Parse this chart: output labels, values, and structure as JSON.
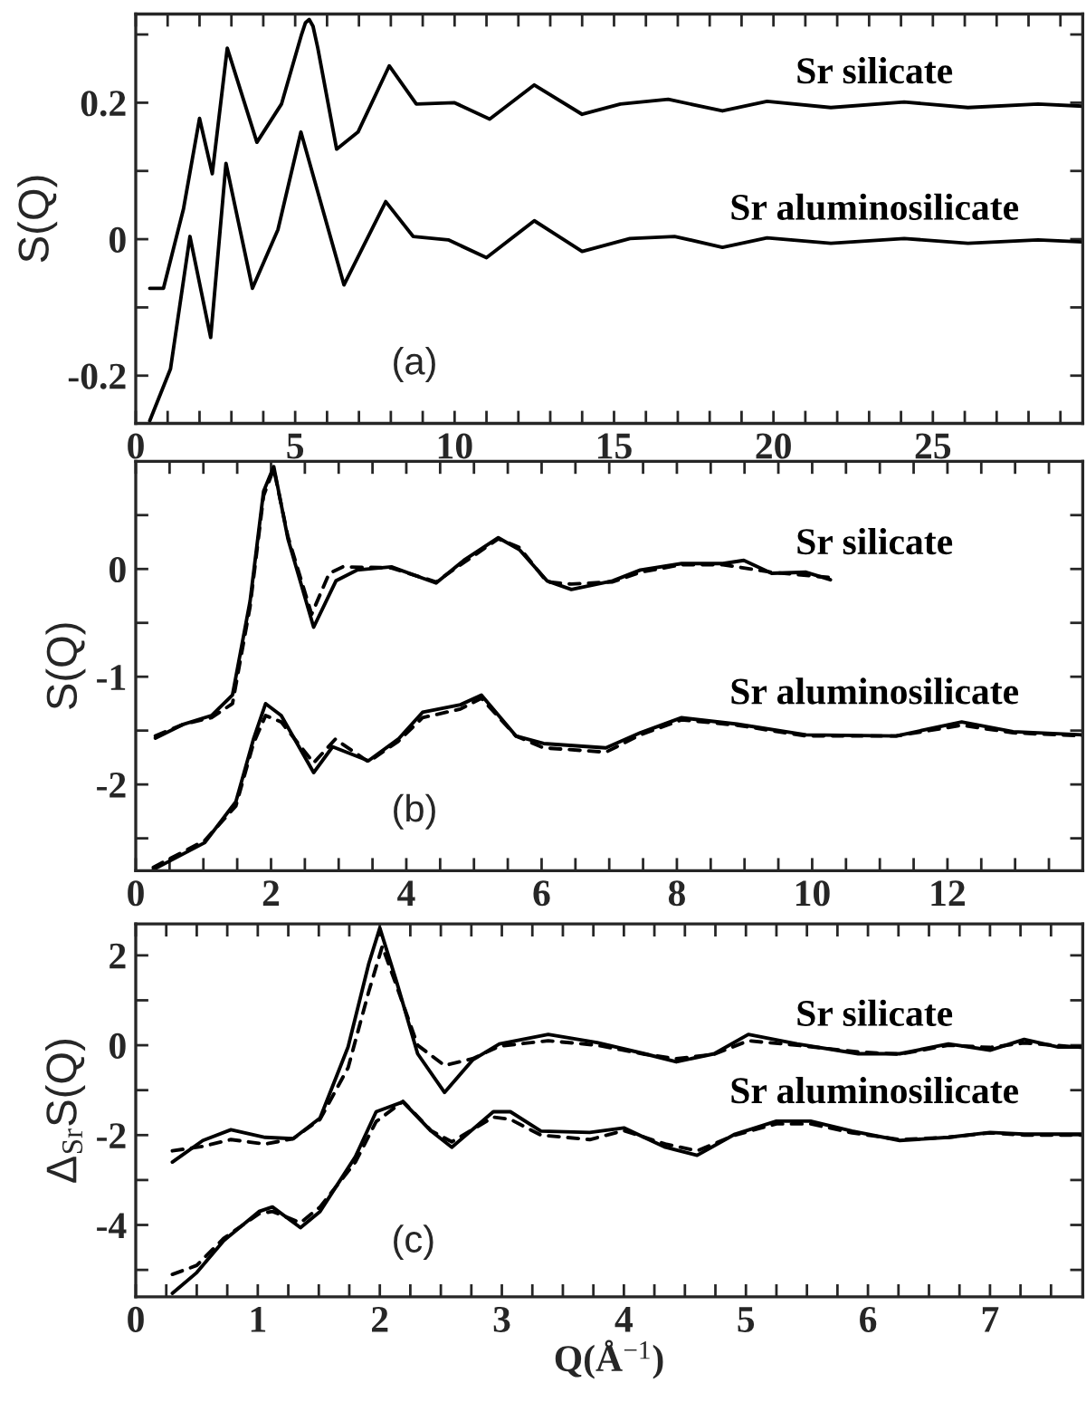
{
  "chart_data": [
    {
      "type": "line",
      "ylabel": "S(Q)",
      "annotations": [
        "(a)"
      ],
      "legend": false,
      "grid": false,
      "marker": "none",
      "xlim": [
        0,
        29.7
      ],
      "ylim": [
        -0.27,
        0.33
      ],
      "xticks": [
        0,
        {
          "value": 1,
          "label": null
        },
        {
          "value": 2,
          "label": null
        },
        {
          "value": 3,
          "label": null
        },
        {
          "value": 4,
          "label": null
        },
        5,
        {
          "value": 6,
          "label": null
        },
        {
          "value": 7,
          "label": null
        },
        {
          "value": 8,
          "label": null
        },
        {
          "value": 9,
          "label": null
        },
        10,
        {
          "value": 11,
          "label": null
        },
        {
          "value": 12,
          "label": null
        },
        {
          "value": 13,
          "label": null
        },
        {
          "value": 14,
          "label": null
        },
        15,
        {
          "value": 16,
          "label": null
        },
        {
          "value": 17,
          "label": null
        },
        {
          "value": 18,
          "label": null
        },
        {
          "value": 19,
          "label": null
        },
        20,
        {
          "value": 21,
          "label": null
        },
        {
          "value": 22,
          "label": null
        },
        {
          "value": 23,
          "label": null
        },
        {
          "value": 24,
          "label": null
        },
        25,
        {
          "value": 26,
          "label": null
        },
        {
          "value": 27,
          "label": null
        },
        {
          "value": 28,
          "label": null
        },
        {
          "value": 29,
          "label": null
        }
      ],
      "yticks": [
        -0.2,
        {
          "value": -0.1,
          "label": null
        },
        0,
        {
          "value": 0.1,
          "label": null
        },
        0.2,
        {
          "value": 0.3,
          "label": null
        }
      ],
      "series": [
        {
          "name": "Sr silicate",
          "color": "#000000",
          "line_style": "solid",
          "x": [
            0.44,
            0.87,
            1.5,
            2.0,
            2.4,
            2.87,
            3.8,
            4.57,
            5.2,
            5.32,
            5.44,
            5.56,
            5.71,
            6.3,
            6.97,
            7.95,
            8.8,
            10.0,
            11.1,
            12.5,
            14.0,
            15.2,
            16.7,
            18.4,
            19.8,
            21.8,
            24.1,
            26.1,
            28.3,
            29.7
          ],
          "values": [
            -0.072,
            -0.072,
            0.045,
            0.177,
            0.096,
            0.28,
            0.142,
            0.198,
            0.3,
            0.317,
            0.322,
            0.312,
            0.28,
            0.132,
            0.157,
            0.254,
            0.198,
            0.2,
            0.176,
            0.226,
            0.183,
            0.198,
            0.205,
            0.188,
            0.202,
            0.193,
            0.201,
            0.193,
            0.198,
            0.195
          ]
        },
        {
          "name": "Sr aluminosilicate",
          "color": "#000000",
          "line_style": "solid",
          "x": [
            0.44,
            1.09,
            1.7,
            2.35,
            2.83,
            3.66,
            4.46,
            5.18,
            6.53,
            7.84,
            8.7,
            9.8,
            11.0,
            12.5,
            14.0,
            15.5,
            16.9,
            18.4,
            19.8,
            21.8,
            24.1,
            26.1,
            28.3,
            29.7
          ],
          "values": [
            -0.266,
            -0.19,
            0.004,
            -0.144,
            0.111,
            -0.072,
            0.014,
            0.157,
            -0.067,
            0.055,
            0.004,
            -0.001,
            -0.027,
            0.027,
            -0.018,
            0.001,
            0.004,
            -0.012,
            0.002,
            -0.006,
            0.001,
            -0.006,
            -0.001,
            -0.004
          ]
        }
      ]
    },
    {
      "type": "line",
      "ylabel": "S(Q)",
      "annotations": [
        "(b)"
      ],
      "legend": false,
      "grid": false,
      "marker": "none",
      "xlim": [
        0,
        14.0
      ],
      "ylim": [
        -2.8,
        1.0
      ],
      "xticks": [
        0,
        {
          "value": 0.5,
          "label": null
        },
        {
          "value": 1,
          "label": null
        },
        {
          "value": 1.5,
          "label": null
        },
        2,
        {
          "value": 2.5,
          "label": null
        },
        {
          "value": 3,
          "label": null
        },
        {
          "value": 3.5,
          "label": null
        },
        4,
        {
          "value": 4.5,
          "label": null
        },
        {
          "value": 5,
          "label": null
        },
        {
          "value": 5.5,
          "label": null
        },
        6,
        {
          "value": 6.5,
          "label": null
        },
        {
          "value": 7,
          "label": null
        },
        {
          "value": 7.5,
          "label": null
        },
        8,
        {
          "value": 8.5,
          "label": null
        },
        {
          "value": 9,
          "label": null
        },
        {
          "value": 9.5,
          "label": null
        },
        10,
        {
          "value": 10.5,
          "label": null
        },
        {
          "value": 11,
          "label": null
        },
        {
          "value": 11.5,
          "label": null
        },
        12,
        {
          "value": 12.5,
          "label": null
        },
        {
          "value": 13,
          "label": null
        },
        {
          "value": 13.5,
          "label": null
        }
      ],
      "yticks": [
        {
          "value": -2.5,
          "label": null
        },
        -2,
        {
          "value": -1.5,
          "label": null
        },
        -1,
        {
          "value": -0.5,
          "label": null
        },
        0,
        {
          "value": 0.5,
          "label": null
        }
      ],
      "series": [
        {
          "name": "Sr silicate",
          "color": "#000000",
          "line_style": "solid",
          "x": [
            0.29,
            0.71,
            1.12,
            1.43,
            1.69,
            1.89,
            2.04,
            2.25,
            2.63,
            2.96,
            3.27,
            3.78,
            4.44,
            4.85,
            5.36,
            5.67,
            6.08,
            6.44,
            7.05,
            7.46,
            8.07,
            8.68,
            8.99,
            9.4,
            9.91,
            10.27
          ],
          "values": [
            -1.57,
            -1.44,
            -1.36,
            -1.17,
            -0.3,
            0.72,
            0.95,
            0.28,
            -0.54,
            -0.11,
            -0.01,
            0.02,
            -0.13,
            0.08,
            0.29,
            0.18,
            -0.11,
            -0.19,
            -0.11,
            -0.01,
            0.05,
            0.05,
            0.08,
            -0.04,
            -0.03,
            -0.1
          ]
        },
        {
          "color": "#000000",
          "line_style": "dashed",
          "x": [
            0.29,
            0.71,
            1.12,
            1.43,
            1.69,
            1.89,
            2.04,
            2.25,
            2.6,
            2.86,
            3.06,
            3.78,
            4.44,
            4.85,
            5.36,
            5.67,
            6.08,
            6.44,
            7.05,
            7.46,
            8.07,
            8.68,
            9.4,
            10.27
          ],
          "values": [
            -1.55,
            -1.44,
            -1.38,
            -1.25,
            -0.35,
            0.68,
            0.93,
            0.3,
            -0.42,
            -0.04,
            0.02,
            0.01,
            -0.12,
            0.06,
            0.28,
            0.2,
            -0.12,
            -0.14,
            -0.12,
            -0.03,
            0.04,
            0.04,
            -0.03,
            -0.08
          ]
        },
        {
          "name": "Sr aluminosilicate",
          "color": "#000000",
          "line_style": "solid",
          "x": [
            0.26,
            1.02,
            1.48,
            1.74,
            1.92,
            2.15,
            2.63,
            2.91,
            3.44,
            3.88,
            4.24,
            4.8,
            5.11,
            5.62,
            6.03,
            6.95,
            7.46,
            8.07,
            8.89,
            9.91,
            11.24,
            12.21,
            12.97,
            14.0
          ],
          "values": [
            -2.79,
            -2.54,
            -2.16,
            -1.58,
            -1.25,
            -1.36,
            -1.89,
            -1.65,
            -1.78,
            -1.58,
            -1.33,
            -1.26,
            -1.17,
            -1.55,
            -1.62,
            -1.66,
            -1.52,
            -1.38,
            -1.44,
            -1.54,
            -1.55,
            -1.42,
            -1.51,
            -1.54
          ]
        },
        {
          "color": "#000000",
          "line_style": "dashed",
          "x": [
            0.26,
            1.02,
            1.48,
            1.74,
            1.92,
            2.15,
            2.63,
            2.95,
            3.44,
            3.88,
            4.24,
            4.8,
            5.11,
            5.62,
            6.03,
            6.95,
            7.46,
            8.07,
            8.89,
            9.91,
            11.24,
            12.21,
            12.97,
            14.0
          ],
          "values": [
            -2.77,
            -2.52,
            -2.2,
            -1.62,
            -1.36,
            -1.42,
            -1.8,
            -1.58,
            -1.79,
            -1.6,
            -1.38,
            -1.3,
            -1.2,
            -1.55,
            -1.66,
            -1.7,
            -1.54,
            -1.4,
            -1.45,
            -1.55,
            -1.55,
            -1.45,
            -1.52,
            -1.55
          ]
        }
      ]
    },
    {
      "type": "line",
      "ylabel": "Δ$_{Sr}$S(Q)",
      "xlabel": "Q(Å$^{−1}$)",
      "annotations": [
        "(c)"
      ],
      "legend": false,
      "grid": false,
      "marker": "none",
      "xlim": [
        0,
        7.76
      ],
      "ylim": [
        -5.6,
        2.7
      ],
      "xticks": [
        0,
        {
          "value": 0.25,
          "label": null
        },
        {
          "value": 0.5,
          "label": null
        },
        {
          "value": 0.75,
          "label": null
        },
        1,
        {
          "value": 1.25,
          "label": null
        },
        {
          "value": 1.5,
          "label": null
        },
        {
          "value": 1.75,
          "label": null
        },
        2,
        {
          "value": 2.25,
          "label": null
        },
        {
          "value": 2.5,
          "label": null
        },
        {
          "value": 2.75,
          "label": null
        },
        3,
        {
          "value": 3.25,
          "label": null
        },
        {
          "value": 3.5,
          "label": null
        },
        {
          "value": 3.75,
          "label": null
        },
        4,
        {
          "value": 4.25,
          "label": null
        },
        {
          "value": 4.5,
          "label": null
        },
        {
          "value": 4.75,
          "label": null
        },
        5,
        {
          "value": 5.25,
          "label": null
        },
        {
          "value": 5.5,
          "label": null
        },
        {
          "value": 5.75,
          "label": null
        },
        6,
        {
          "value": 6.25,
          "label": null
        },
        {
          "value": 6.5,
          "label": null
        },
        {
          "value": 6.75,
          "label": null
        },
        7,
        {
          "value": 7.25,
          "label": null
        },
        {
          "value": 7.5,
          "label": null
        }
      ],
      "yticks": [
        {
          "value": -5,
          "label": null
        },
        -4,
        {
          "value": -3,
          "label": null
        },
        -2,
        {
          "value": -1,
          "label": null
        },
        0,
        {
          "value": 1,
          "label": null
        },
        2
      ],
      "series": [
        {
          "name": "Sr silicate",
          "color": "#000000",
          "line_style": "solid",
          "x": [
            0.3,
            0.55,
            0.78,
            1.06,
            1.29,
            1.51,
            1.74,
            1.91,
            2.0,
            2.14,
            2.31,
            2.53,
            2.76,
            2.98,
            3.38,
            3.78,
            4.17,
            4.43,
            4.74,
            5.02,
            5.42,
            5.92,
            6.26,
            6.66,
            7.0,
            7.28,
            7.56,
            7.76
          ],
          "values": [
            -2.6,
            -2.12,
            -1.88,
            -2.05,
            -2.08,
            -1.62,
            -0.04,
            1.82,
            2.61,
            1.39,
            -0.19,
            -1.05,
            -0.33,
            0.03,
            0.24,
            0.06,
            -0.19,
            -0.37,
            -0.19,
            0.24,
            0.03,
            -0.19,
            -0.19,
            0.03,
            -0.11,
            0.13,
            -0.04,
            -0.04
          ]
        },
        {
          "color": "#000000",
          "line_style": "dashed",
          "x": [
            0.3,
            0.55,
            0.78,
            1.06,
            1.29,
            1.51,
            1.74,
            1.91,
            2.02,
            2.14,
            2.31,
            2.53,
            2.76,
            2.98,
            3.38,
            3.78,
            4.17,
            4.43,
            4.74,
            5.02,
            5.42,
            5.92,
            6.26,
            6.66,
            7.0,
            7.28,
            7.76
          ],
          "values": [
            -2.35,
            -2.25,
            -2.1,
            -2.2,
            -2.08,
            -1.65,
            -0.5,
            1.2,
            2.2,
            1.3,
            0.0,
            -0.45,
            -0.3,
            -0.02,
            0.1,
            0.0,
            -0.2,
            -0.3,
            -0.2,
            0.1,
            0.0,
            -0.15,
            -0.2,
            0.0,
            -0.05,
            0.05,
            -0.05
          ]
        },
        {
          "name": "Sr aluminosilicate",
          "color": "#000000",
          "line_style": "solid",
          "x": [
            0.3,
            0.5,
            0.72,
            1.01,
            1.12,
            1.35,
            1.51,
            1.8,
            1.97,
            2.19,
            2.42,
            2.59,
            2.93,
            3.07,
            3.32,
            3.72,
            4.0,
            4.34,
            4.6,
            4.91,
            5.25,
            5.53,
            5.87,
            6.26,
            6.66,
            7.0,
            7.28,
            7.76
          ],
          "values": [
            -5.52,
            -5.06,
            -4.35,
            -3.7,
            -3.6,
            -4.06,
            -3.7,
            -2.48,
            -1.48,
            -1.26,
            -1.91,
            -2.27,
            -1.48,
            -1.48,
            -1.91,
            -1.94,
            -1.84,
            -2.27,
            -2.45,
            -1.98,
            -1.69,
            -1.69,
            -1.91,
            -2.12,
            -2.05,
            -1.94,
            -1.98,
            -1.98
          ]
        },
        {
          "color": "#000000",
          "line_style": "dashed",
          "x": [
            0.3,
            0.5,
            0.72,
            1.01,
            1.12,
            1.35,
            1.51,
            1.8,
            1.97,
            2.19,
            2.42,
            2.59,
            2.93,
            3.07,
            3.32,
            3.72,
            4.0,
            4.34,
            4.6,
            4.91,
            5.25,
            5.53,
            5.87,
            6.26,
            6.66,
            7.0,
            7.28,
            7.76
          ],
          "values": [
            -5.1,
            -4.9,
            -4.3,
            -3.75,
            -3.7,
            -3.95,
            -3.6,
            -2.6,
            -1.7,
            -1.25,
            -1.9,
            -2.15,
            -1.6,
            -1.65,
            -2.0,
            -2.1,
            -1.9,
            -2.2,
            -2.35,
            -2.0,
            -1.75,
            -1.75,
            -1.95,
            -2.1,
            -2.05,
            -1.95,
            -2.0,
            -2.0
          ]
        }
      ]
    }
  ]
}
